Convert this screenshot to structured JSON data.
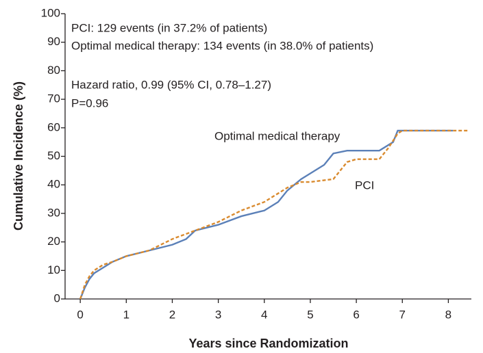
{
  "chart_data": {
    "type": "line",
    "x_label": "Years since Randomization",
    "y_label": "Cumulative Incidence (%)",
    "annotations": [
      "PCI: 129 events (in 37.2% of patients)",
      "Optimal medical therapy: 134 events (in 38.0% of patients)",
      "Hazard ratio, 0.99 (95% CI, 0.78–1.27)",
      "P=0.96"
    ],
    "series": [
      {
        "name": "Optimal medical therapy",
        "color": "#5b80b8",
        "dash": false,
        "x": [
          0,
          0.1,
          0.2,
          0.3,
          0.5,
          0.7,
          1,
          1.5,
          2,
          2.3,
          2.5,
          3,
          3.5,
          4,
          4.3,
          4.5,
          4.8,
          5,
          5.3,
          5.5,
          5.8,
          6,
          6.5,
          6.8,
          6.9,
          8.1
        ],
        "values": [
          0,
          4,
          7,
          9,
          11,
          13,
          15,
          17,
          19,
          21,
          24,
          26,
          29,
          31,
          34,
          38,
          42,
          44,
          47,
          51,
          52,
          52,
          52,
          55,
          59,
          59
        ]
      },
      {
        "name": "PCI",
        "color": "#d98a2e",
        "dash": true,
        "x": [
          0,
          0.1,
          0.2,
          0.3,
          0.5,
          0.7,
          1,
          1.5,
          2,
          2.5,
          3,
          3.5,
          4,
          4.5,
          4.8,
          5,
          5.5,
          5.8,
          6,
          6.5,
          6.7,
          6.9,
          7,
          8.45
        ],
        "values": [
          0,
          5,
          8,
          10,
          12,
          13,
          15,
          17,
          21,
          24,
          27,
          31,
          34,
          39,
          41,
          41,
          42,
          48,
          49,
          49,
          53,
          58,
          59,
          59
        ]
      }
    ],
    "xlim": [
      -0.33,
      8.5
    ],
    "xticks": [
      0,
      1,
      2,
      3,
      4,
      5,
      6,
      7,
      8
    ],
    "ylim": [
      0,
      100
    ],
    "yticks": [
      0,
      10,
      20,
      30,
      40,
      50,
      60,
      70,
      80,
      90,
      100
    ],
    "grid": false
  }
}
